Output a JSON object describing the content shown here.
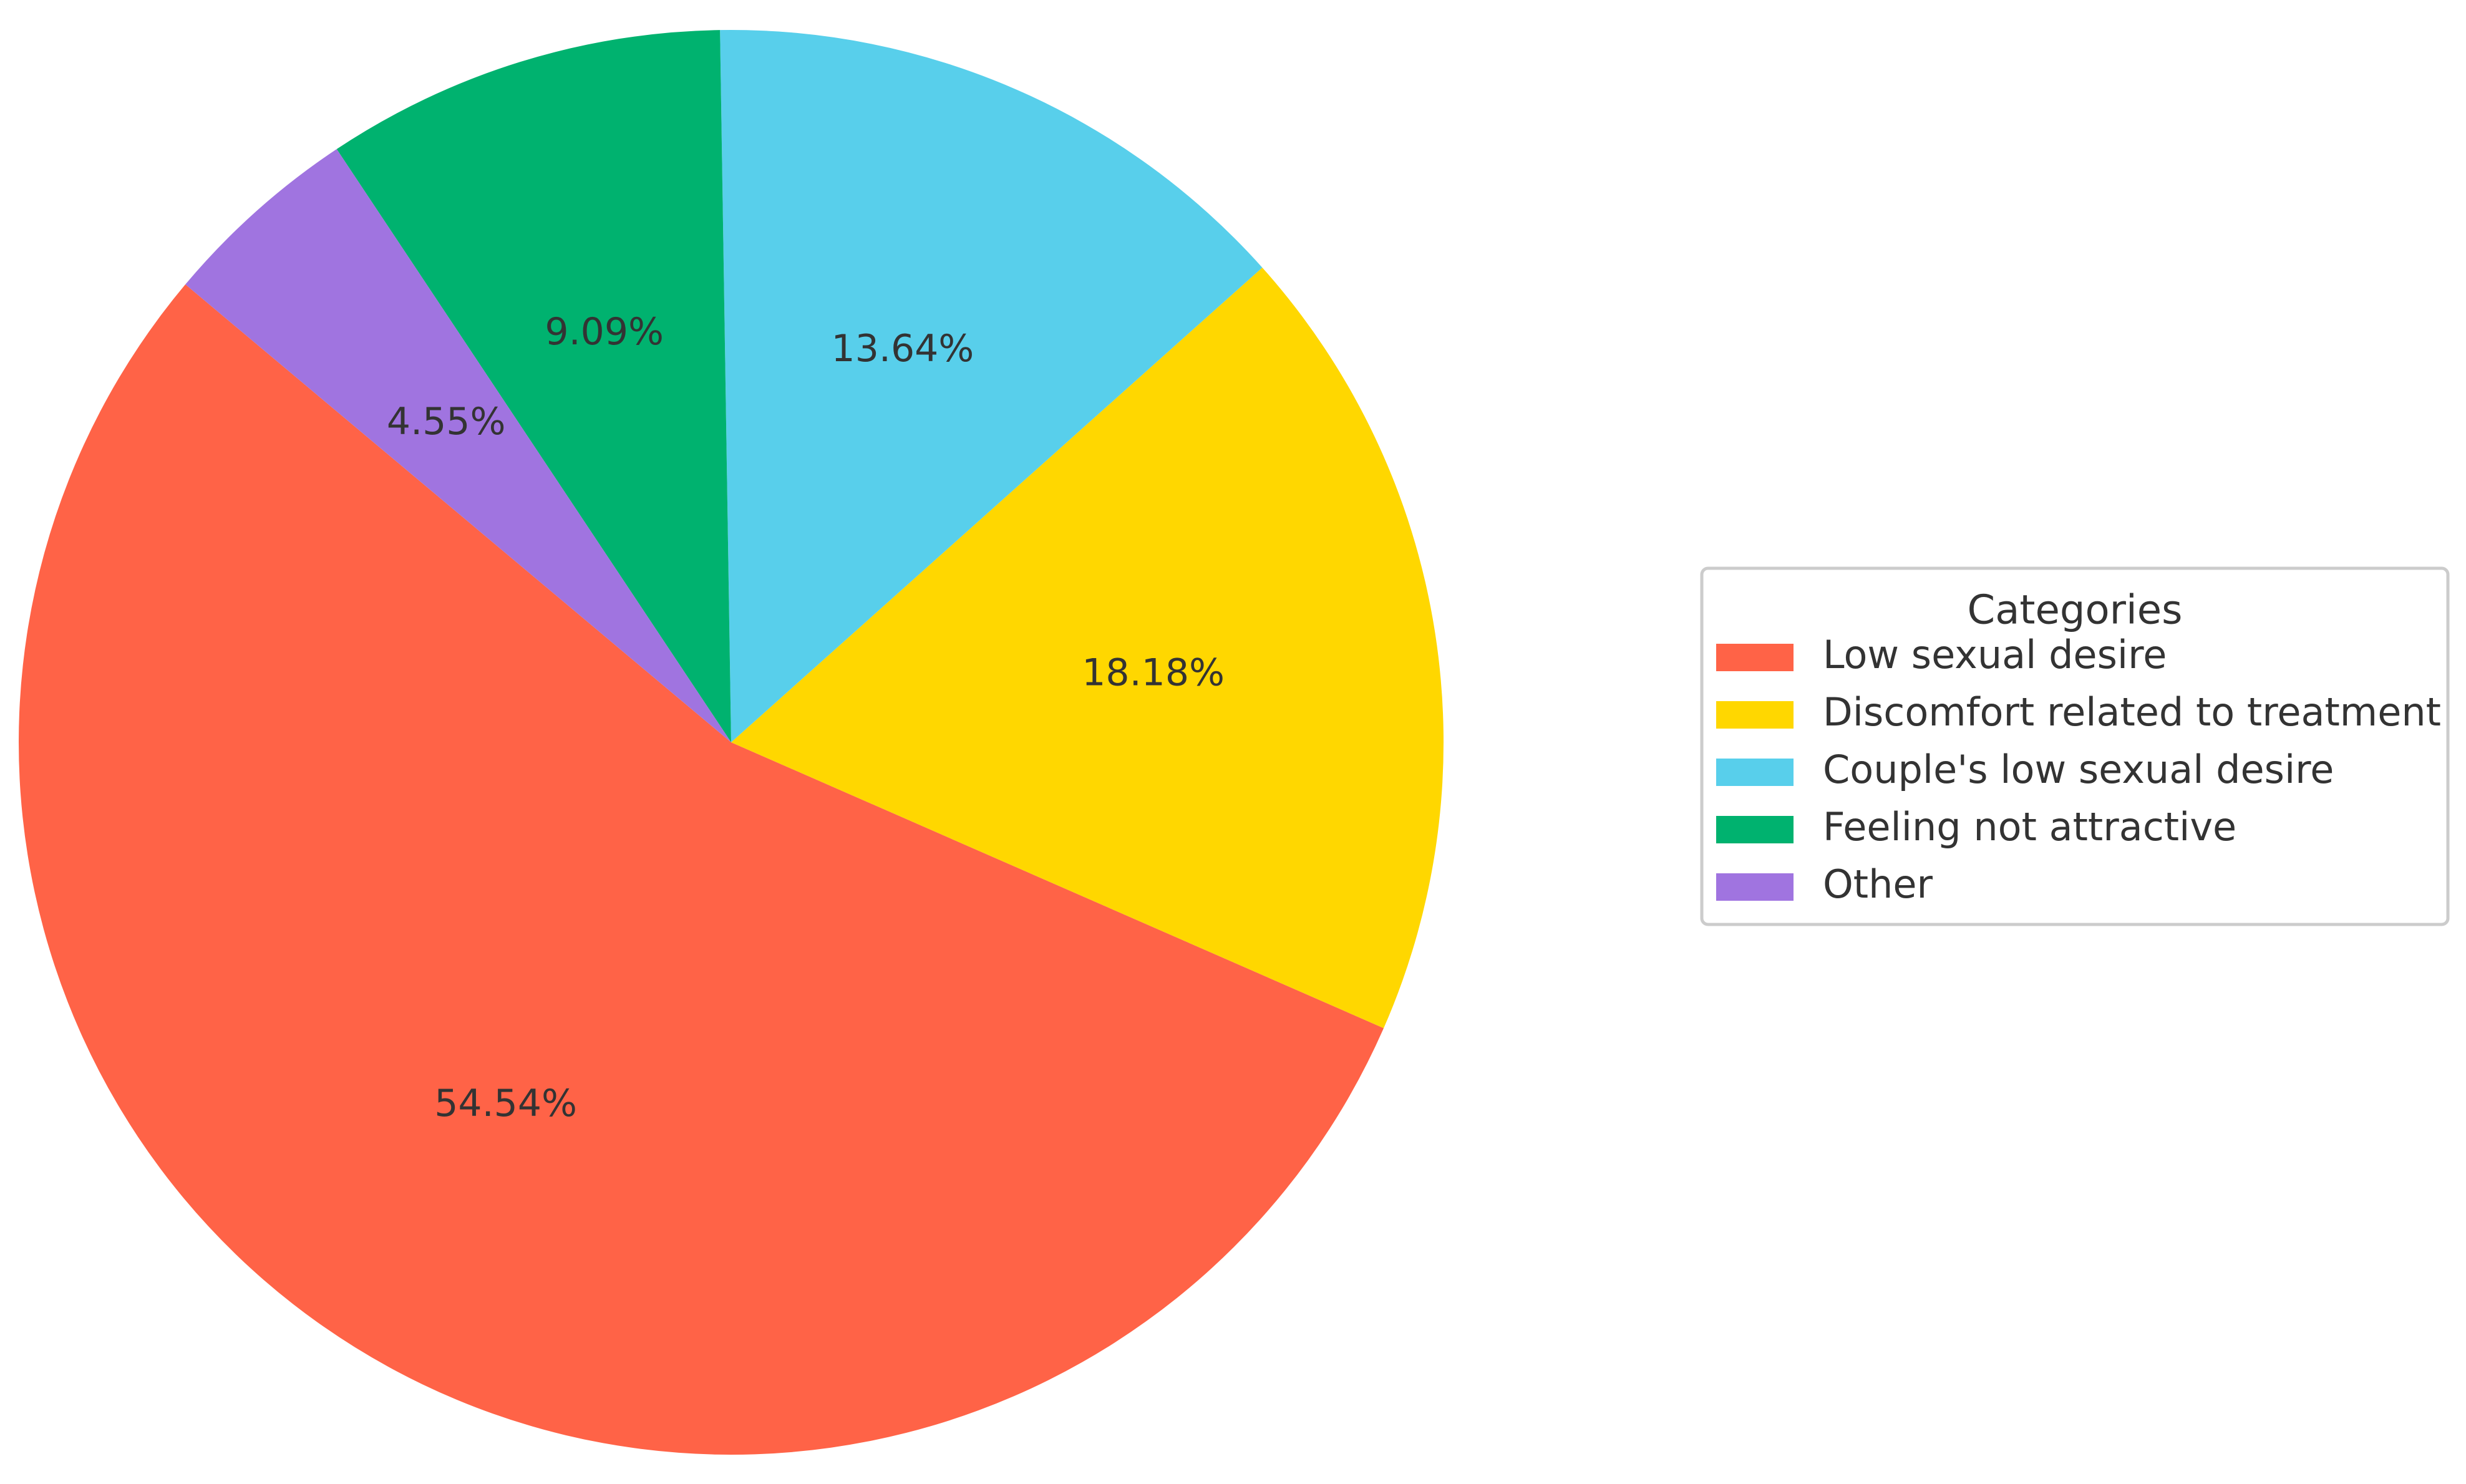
{
  "chart_data": {
    "type": "pie",
    "title": "",
    "legend": {
      "title": "Categories",
      "placement": "right"
    },
    "start_angle_deg": 140,
    "direction": "counterclockwise",
    "slices": [
      {
        "label": "Low sexual desire",
        "value": 54.54,
        "display": "54.54%",
        "color": "#FF6347"
      },
      {
        "label": "Discomfort related to treatment",
        "value": 18.18,
        "display": "18.18%",
        "color": "#FFD700"
      },
      {
        "label": "Couple's low sexual desire",
        "value": 13.64,
        "display": "13.64%",
        "color": "#58CFEB"
      },
      {
        "label": "Feeling not attractive",
        "value": 9.09,
        "display": "9.09%",
        "color": "#00B26F"
      },
      {
        "label": "Other",
        "value": 4.55,
        "display": "4.55%",
        "color": "#A074E0"
      }
    ]
  }
}
